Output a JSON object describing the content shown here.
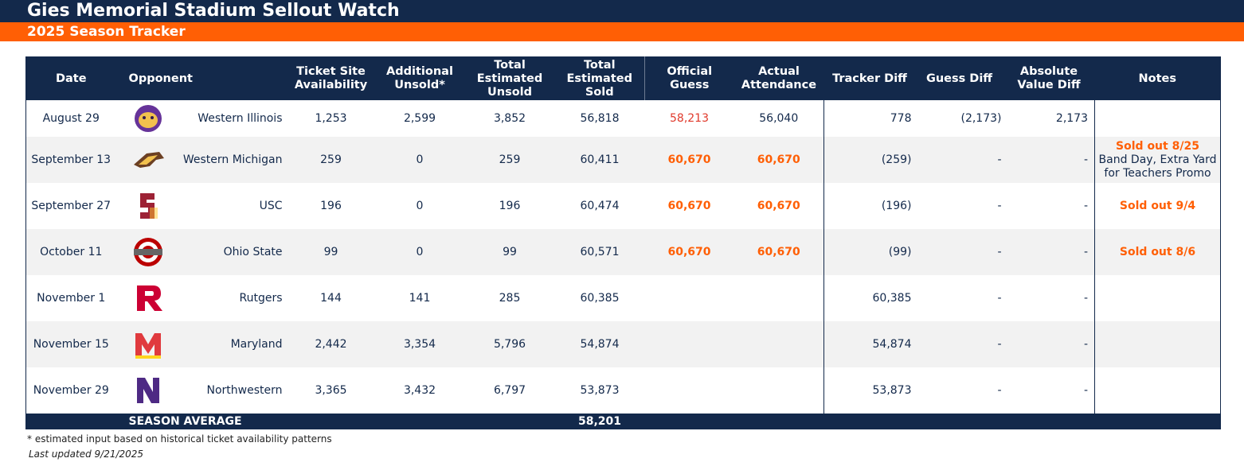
{
  "header": {
    "title": "Gies Memorial Stadium Sellout Watch",
    "subtitle": "2025 Season Tracker"
  },
  "table": {
    "columns": {
      "date": "Date",
      "opponent": "Opponent",
      "ticket_site": "Ticket Site Availability",
      "additional": "Additional Unsold*",
      "unsold": "Total Estimated Unsold",
      "sold": "Total Estimated Sold",
      "official": "Official Guess",
      "actual": "Actual Attendance",
      "tracker": "Tracker Diff",
      "guess_diff": "Guess Diff",
      "abs_diff": "Absolute Value Diff",
      "notes": "Notes"
    },
    "rows": [
      {
        "date": "August 29",
        "opponent": "Western Illinois",
        "ticket_site": "1,253",
        "additional": "2,599",
        "unsold": "3,852",
        "sold": "56,818",
        "official": "58,213",
        "actual": "56,040",
        "tracker": "778",
        "guess_diff": "(2,173)",
        "abs_diff": "2,173"
      },
      {
        "date": "September 13",
        "opponent": "Western Michigan",
        "ticket_site": "259",
        "additional": "0",
        "unsold": "259",
        "sold": "60,411",
        "official": "60,670",
        "actual": "60,670",
        "tracker": "(259)",
        "guess_diff": "-",
        "abs_diff": "-",
        "notes": [
          "Sold out 8/25",
          "Band Day, Extra Yard for Teachers Promo"
        ]
      },
      {
        "date": "September 27",
        "opponent": "USC",
        "ticket_site": "196",
        "additional": "0",
        "unsold": "196",
        "sold": "60,474",
        "official": "60,670",
        "actual": "60,670",
        "tracker": "(196)",
        "guess_diff": "-",
        "abs_diff": "-",
        "notes": [
          "Sold out 9/4"
        ]
      },
      {
        "date": "October 11",
        "opponent": "Ohio State",
        "ticket_site": "99",
        "additional": "0",
        "unsold": "99",
        "sold": "60,571",
        "official": "60,670",
        "actual": "60,670",
        "tracker": "(99)",
        "guess_diff": "-",
        "abs_diff": "-",
        "notes": [
          "Sold out 8/6"
        ]
      },
      {
        "date": "November 1",
        "opponent": "Rutgers",
        "ticket_site": "144",
        "additional": "141",
        "unsold": "285",
        "sold": "60,385",
        "tracker": "60,385",
        "guess_diff": "-",
        "abs_diff": "-"
      },
      {
        "date": "November 15",
        "opponent": "Maryland",
        "ticket_site": "2,442",
        "additional": "3,354",
        "unsold": "5,796",
        "sold": "54,874",
        "tracker": "54,874",
        "guess_diff": "-",
        "abs_diff": "-"
      },
      {
        "date": "November 29",
        "opponent": "Northwestern",
        "ticket_site": "3,365",
        "additional": "3,432",
        "unsold": "6,797",
        "sold": "53,873",
        "tracker": "53,873",
        "guess_diff": "-",
        "abs_diff": "-"
      }
    ],
    "footer": {
      "label": "SEASON AVERAGE",
      "sold": "58,201"
    }
  },
  "notes": {
    "footnote": "* estimated input based on historical ticket availability patterns",
    "updated": "Last updated 9/21/2025"
  }
}
